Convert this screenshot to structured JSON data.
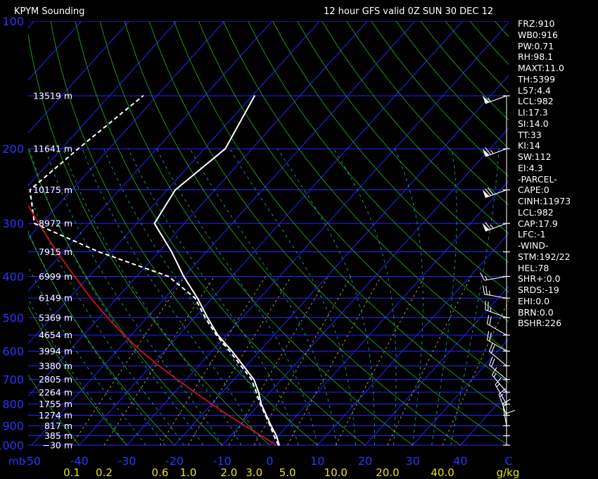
{
  "window": {
    "title": "KPYM Sounding",
    "subtitle": "12 hour GFS valid 0Z SUN 30 DEC 12"
  },
  "indices": [
    "FRZ:910",
    "WB0:916",
    "PW:0.71",
    "RH:98.1",
    "MAXT:11.0",
    "TH:5399",
    "L57:4.4",
    "LCL:982",
    "LI:17.3",
    "SI:14.0",
    "TT:33",
    "KI:14",
    "SW:112",
    "EI:4.3",
    "-PARCEL-",
    "CAPE:0",
    "CINH:11973",
    "LCL:982",
    "CAP:17.9",
    "LFC:-1",
    "-WIND-",
    "STM:192/22",
    "HEL:78",
    "SHR+:0.0",
    "SRDS:-19",
    "EHI:0.0",
    "BRN:0.0",
    "BSHR:226"
  ],
  "colors": {
    "background": "#000000",
    "isobar": "#2424ff",
    "isotherm": "#2424ff",
    "dry_adiabat": "#20a020",
    "moist_adiabat": "#1aa090",
    "mixing_ratio": "#b0b040",
    "temperature": "#ffffff",
    "dewpoint": "#ffffff",
    "parcel": "#cc1414",
    "wind_barbs": "#ffffff",
    "pressure_label": "#3030ff",
    "temp_label": "#3030ff",
    "mixing_label": "#e0e020",
    "height_label": "#ffffff"
  },
  "chart_data": {
    "type": "line",
    "title": "KPYM Sounding",
    "subtitle": "12 hour GFS valid 0Z SUN 30 DEC 12",
    "x_axis": {
      "unit_label": "mb",
      "ticks": [
        "-50",
        "-40",
        "-30",
        "-20",
        "-10",
        "0",
        "10",
        "20",
        "30",
        "40",
        "C"
      ],
      "tick_values": [
        -50,
        -40,
        -30,
        -20,
        -10,
        0,
        10,
        20,
        30,
        40
      ]
    },
    "y_axis": {
      "scale": "log",
      "range_mb": [
        1000,
        100
      ],
      "pressure_labels": [
        "100",
        "200",
        "300",
        "400",
        "500",
        "600",
        "700",
        "800",
        "900",
        "1000"
      ],
      "pressure_values": [
        100,
        200,
        300,
        400,
        500,
        600,
        700,
        800,
        900,
        1000
      ]
    },
    "heights": {
      "labels": [
        "13519 m",
        "11641 m",
        "10175 m",
        "8972 m",
        "7915 m",
        "6999 m",
        "6149 m",
        "5369 m",
        "4654 m",
        "3994 m",
        "3380 m",
        "2805 m",
        "2264 m",
        "1755 m",
        "1274 m",
        "817 m",
        "385 m",
        "−30 m"
      ],
      "pressure_mb": [
        150,
        200,
        250,
        300,
        350,
        400,
        450,
        500,
        550,
        600,
        650,
        700,
        750,
        800,
        850,
        900,
        950,
        1000
      ]
    },
    "mixing_ratio_labels": {
      "values": [
        "0.1",
        "0.2",
        "0.6",
        "1.0",
        "2.0",
        "3.0",
        "5.0",
        "10.0",
        "20.0",
        "40.0"
      ],
      "unit": "g/kg",
      "numeric": [
        0.1,
        0.2,
        0.6,
        1.0,
        2.0,
        3.0,
        5.0,
        10.0,
        20.0,
        40.0
      ]
    },
    "series": [
      {
        "kind": "temperature",
        "points": [
          [
            1000,
            2.0
          ],
          [
            950,
            -0.4
          ],
          [
            900,
            -3.4
          ],
          [
            850,
            -6.4
          ],
          [
            800,
            -9.6
          ],
          [
            750,
            -12.4
          ],
          [
            700,
            -15.8
          ],
          [
            650,
            -20.6
          ],
          [
            600,
            -25.8
          ],
          [
            550,
            -31.8
          ],
          [
            500,
            -37.3
          ],
          [
            450,
            -43.1
          ],
          [
            400,
            -50.1
          ],
          [
            350,
            -57.3
          ],
          [
            300,
            -66.3
          ],
          [
            250,
            -68.3
          ],
          [
            200,
            -65.6
          ],
          [
            150,
            -69.5
          ]
        ]
      },
      {
        "kind": "dewpoint",
        "points": [
          [
            1000,
            1.8
          ],
          [
            950,
            -0.9
          ],
          [
            900,
            -3.6
          ],
          [
            850,
            -6.6
          ],
          [
            800,
            -9.8
          ],
          [
            750,
            -12.9
          ],
          [
            700,
            -16.3
          ],
          [
            650,
            -21.1
          ],
          [
            600,
            -26.3
          ],
          [
            550,
            -32.1
          ],
          [
            500,
            -37.8
          ],
          [
            450,
            -43.6
          ],
          [
            400,
            -53.3
          ],
          [
            350,
            -72.6
          ],
          [
            300,
            -91.5
          ],
          [
            250,
            -98.8
          ],
          [
            200,
            -96.5
          ],
          [
            150,
            -92.9
          ]
        ]
      },
      {
        "kind": "parcel",
        "points": [
          [
            1000,
            1.4
          ],
          [
            950,
            -3.6
          ],
          [
            900,
            -8.9
          ],
          [
            850,
            -14.4
          ],
          [
            800,
            -20.0
          ],
          [
            750,
            -25.8
          ],
          [
            700,
            -31.9
          ],
          [
            650,
            -38.3
          ],
          [
            600,
            -44.9
          ],
          [
            550,
            -51.5
          ],
          [
            500,
            -58.3
          ],
          [
            450,
            -65.5
          ],
          [
            400,
            -73.0
          ],
          [
            350,
            -81.4
          ],
          [
            300,
            -90.6
          ],
          [
            250,
            -101.1
          ],
          [
            200,
            -113.6
          ],
          [
            150,
            -129.3
          ],
          [
            140,
            -132.7
          ],
          [
            130,
            -136.5
          ]
        ]
      }
    ],
    "wind_barbs": [
      {
        "p": 150,
        "dir": 250,
        "kt": 55
      },
      {
        "p": 200,
        "dir": 250,
        "kt": 65
      },
      {
        "p": 250,
        "dir": 250,
        "kt": 70
      },
      {
        "p": 300,
        "dir": 250,
        "kt": 65
      },
      {
        "p": 400,
        "dir": 260,
        "kt": 15
      },
      {
        "p": 450,
        "dir": 280,
        "kt": 25
      },
      {
        "p": 500,
        "dir": 290,
        "kt": 25
      },
      {
        "p": 550,
        "dir": 300,
        "kt": 20
      },
      {
        "p": 600,
        "dir": 300,
        "kt": 20
      },
      {
        "p": 650,
        "dir": 310,
        "kt": 20
      },
      {
        "p": 700,
        "dir": 310,
        "kt": 20
      },
      {
        "p": 750,
        "dir": 320,
        "kt": 15
      },
      {
        "p": 800,
        "dir": 330,
        "kt": 15
      },
      {
        "p": 850,
        "dir": 340,
        "kt": 15
      },
      {
        "p": 900,
        "dir": 350,
        "kt": 15
      },
      {
        "p": 950,
        "dir": 0,
        "kt": 10
      }
    ]
  }
}
